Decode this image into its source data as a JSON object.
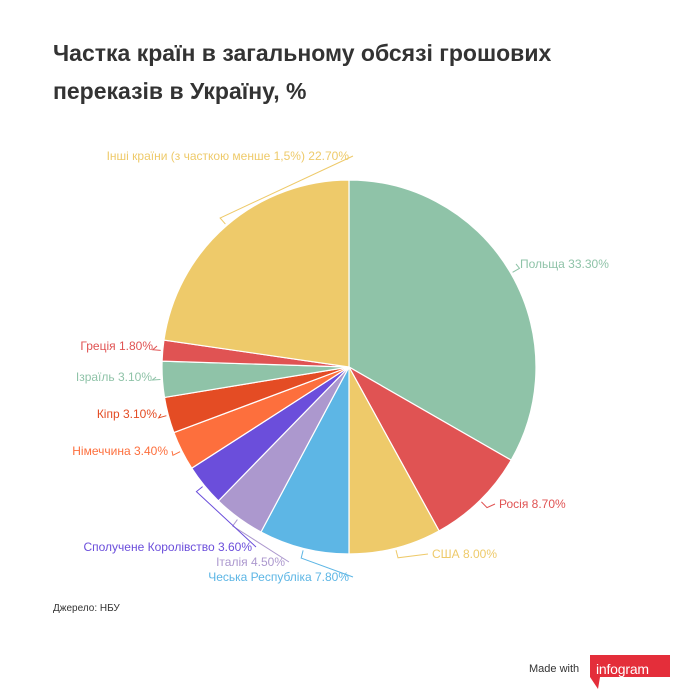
{
  "chart_data": {
    "type": "pie",
    "title": "Частка країн в загальному обсязі грошових переказів в Україну, %",
    "slices": [
      {
        "label": "Польща 33.30%",
        "value": 33.3,
        "color": "#8fc3a8"
      },
      {
        "label": "Росія 8.70%",
        "value": 8.7,
        "color": "#e05353"
      },
      {
        "label": "США 8.00%",
        "value": 8.0,
        "color": "#eeca6a"
      },
      {
        "label": "Чеська Республіка 7.80%",
        "value": 7.8,
        "color": "#5db6e5"
      },
      {
        "label": "Італія 4.50%",
        "value": 4.5,
        "color": "#ac98ce"
      },
      {
        "label": "Сполучене Королівство 3.60%",
        "value": 3.6,
        "color": "#6b4edb"
      },
      {
        "label": "Німеччина 3.40%",
        "value": 3.4,
        "color": "#fd6f3d"
      },
      {
        "label": "Кіпр 3.10%",
        "value": 3.1,
        "color": "#e44c24"
      },
      {
        "label": "Ізраїль 3.10%",
        "value": 3.1,
        "color": "#8fc3a8"
      },
      {
        "label": "Греція 1.80%",
        "value": 1.8,
        "color": "#e05353"
      },
      {
        "label": "Інші країни (з часткою менше 1,5%) 22.70%",
        "value": 22.7,
        "color": "#eeca6a"
      }
    ]
  },
  "source": "Джерело: НБУ",
  "footer": {
    "made_with": "Made with",
    "brand": "infogram",
    "brand_color": "#e42e3a"
  }
}
